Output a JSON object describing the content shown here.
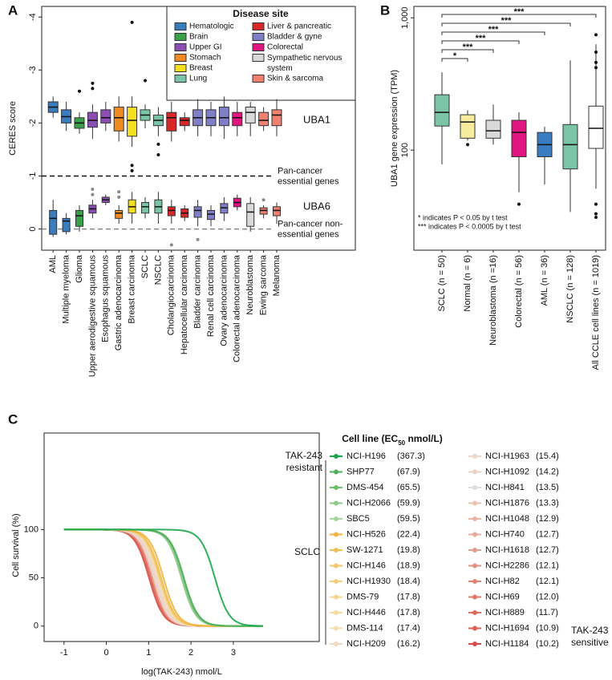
{
  "chart_data": [
    {
      "type": "box",
      "panel": "A",
      "ylabel": "CERES score",
      "categories": [
        "AML",
        "Multiple myeloma",
        "Glioma",
        "Upper aerodigestive squamous",
        "Esophagus squamous",
        "Gastric adenocarcinoma",
        "Breast carcinoma",
        "SCLC",
        "NSCLC",
        "Cholangiocarcinoma",
        "Hepatocellular carcinoma",
        "Bladder carcinoma",
        "Renal cell carcinoma",
        "Ovary adenocarcinoma",
        "Colorectal adenocarcinoma",
        "Neuroblastoma",
        "Ewing sarcoma",
        "Melanoma"
      ],
      "colors": [
        "#3a7cc0",
        "#3a7cc0",
        "#3aa04a",
        "#8a4fb0",
        "#8a4fb0",
        "#f08a22",
        "#f5e020",
        "#7cc4a8",
        "#7cc4a8",
        "#d62828",
        "#d62828",
        "#7f7fc8",
        "#7f7fc8",
        "#7f7fc8",
        "#e0157f",
        "#d9d9d9",
        "#f08070",
        "#f08070"
      ],
      "ylim": [
        0.4,
        -4.2
      ],
      "yticks": [
        0,
        -1,
        -2,
        -3,
        -4
      ],
      "series": [
        {
          "name": "UBA1",
          "outlier_color": "#111",
          "min": [
            -2.5,
            -2.4,
            -2.2,
            -2.35,
            -2.4,
            -2.5,
            -2.5,
            -2.35,
            -2.3,
            -2.4,
            -2.2,
            -2.45,
            -2.4,
            -2.5,
            -2.4,
            -2.4,
            -2.3,
            -2.45
          ],
          "q1": [
            -2.4,
            -2.25,
            -2.1,
            -2.2,
            -2.25,
            -2.3,
            -2.3,
            -2.25,
            -2.15,
            -2.2,
            -2.1,
            -2.25,
            -2.25,
            -2.3,
            -2.2,
            -2.3,
            -2.2,
            -2.25
          ],
          "median": [
            -2.3,
            -2.12,
            -2.0,
            -2.05,
            -2.1,
            -2.1,
            -2.05,
            -2.15,
            -2.05,
            -2.1,
            -2.05,
            -2.1,
            -2.1,
            -2.1,
            -2.1,
            -2.2,
            -2.05,
            -2.15
          ],
          "q3": [
            -2.2,
            -2.0,
            -1.9,
            -1.92,
            -2.0,
            -1.85,
            -1.75,
            -2.05,
            -1.95,
            -1.85,
            -1.95,
            -1.95,
            -1.95,
            -1.95,
            -1.95,
            -2.0,
            -1.95,
            -1.95
          ],
          "max": [
            -2.1,
            -1.85,
            -1.8,
            -1.7,
            -1.85,
            -1.65,
            -1.55,
            -1.9,
            -1.75,
            -1.65,
            -1.85,
            -1.75,
            -1.75,
            -1.7,
            -1.75,
            -1.75,
            -1.85,
            -1.75
          ],
          "outliers": [
            [],
            [],
            [
              -2.6
            ],
            [
              -2.65,
              -2.75
            ],
            [],
            [],
            [
              -3.9,
              -1.2,
              -1.1
            ],
            [
              -2.8
            ],
            [
              -1.6,
              -1.4
            ],
            [],
            [],
            [],
            [],
            [],
            [],
            [],
            [],
            []
          ]
        },
        {
          "name": "UBA6",
          "outlier_color": "#888",
          "min": [
            -0.55,
            -0.3,
            -0.45,
            -0.55,
            -0.65,
            -0.45,
            -0.7,
            -0.6,
            -0.7,
            -0.55,
            -0.45,
            -0.55,
            -0.45,
            -0.6,
            -0.65,
            -0.6,
            -0.45,
            -0.5
          ],
          "q1": [
            -0.35,
            -0.2,
            -0.35,
            -0.45,
            -0.6,
            -0.35,
            -0.55,
            -0.5,
            -0.55,
            -0.42,
            -0.38,
            -0.42,
            -0.35,
            -0.48,
            -0.58,
            -0.48,
            -0.4,
            -0.42
          ],
          "median": [
            -0.2,
            -0.15,
            -0.25,
            -0.38,
            -0.55,
            -0.3,
            -0.42,
            -0.42,
            -0.42,
            -0.35,
            -0.3,
            -0.35,
            -0.28,
            -0.4,
            -0.5,
            -0.32,
            -0.35,
            -0.35
          ],
          "q3": [
            0.1,
            0.05,
            -0.05,
            -0.3,
            -0.5,
            -0.2,
            -0.3,
            -0.3,
            -0.3,
            -0.25,
            -0.22,
            -0.22,
            -0.18,
            -0.3,
            -0.42,
            -0.05,
            -0.28,
            -0.25
          ],
          "max": [
            0.15,
            0.1,
            0.05,
            -0.2,
            -0.45,
            -0.1,
            -0.1,
            -0.2,
            -0.1,
            -0.1,
            -0.15,
            -0.05,
            -0.05,
            -0.15,
            -0.35,
            0.05,
            -0.2,
            -0.1
          ],
          "outliers": [
            [],
            [],
            [],
            [
              -0.65,
              -0.75
            ],
            [],
            [
              -0.6,
              -0.7
            ],
            [],
            [],
            [],
            [
              0.3
            ],
            [],
            [
              0.2
            ],
            [],
            [],
            [],
            [],
            [
              -0.55
            ],
            []
          ]
        }
      ],
      "ref_lines": [
        {
          "value": -1,
          "color": "#111",
          "label": [
            "Pan-cancer",
            "essential genes"
          ]
        },
        {
          "value": 0,
          "color": "#888",
          "label": [
            "Pan-cancer non-",
            "essential genes"
          ]
        }
      ],
      "legend": {
        "title": "Disease site",
        "items": [
          {
            "name": "Hematologic",
            "color": "#3a7cc0"
          },
          {
            "name": "Brain",
            "color": "#3aa04a"
          },
          {
            "name": "Upper GI",
            "color": "#8a4fb0"
          },
          {
            "name": "Stomach",
            "color": "#f08a22"
          },
          {
            "name": "Breast",
            "color": "#f5e020"
          },
          {
            "name": "Lung",
            "color": "#7cc4a8"
          },
          {
            "name": "Liver & pancreatic",
            "color": "#d62828"
          },
          {
            "name": "Bladder & gyne",
            "color": "#7f7fc8"
          },
          {
            "name": "Colorectal",
            "color": "#e0157f"
          },
          {
            "name": "Sympathetic nervous system",
            "color": "#d9d9d9"
          },
          {
            "name": "Skin & sarcoma",
            "color": "#f08070"
          }
        ]
      }
    },
    {
      "type": "box",
      "panel": "B",
      "ylabel": "UBA1 gene expression (TPM)",
      "log_y": true,
      "categories": [
        "SCLC (n = 50)",
        "Normal (n = 6)",
        "Neuroblastoma (n =16)",
        "Colorectal (n = 56)",
        "AML (n = 36)",
        "NSCLC (n = 128)",
        "All CCLE cell lines (n = 1019)"
      ],
      "colors": [
        "#7cc4a8",
        "#f7ec9e",
        "#d9d9d9",
        "#e0157f",
        "#3a7cc0",
        "#7cc4a8",
        "#ffffff"
      ],
      "ylim": [
        17.5,
        1220
      ],
      "yticks": [
        100,
        {
          "value": 1000,
          "label": "1,000"
        }
      ],
      "series": [
        {
          "outlier_color": "#111",
          "min": [
            78,
            118,
            110,
            48,
            55,
            34,
            51
          ],
          "q1": [
            152,
            123,
            123,
            89,
            89,
            72,
            103
          ],
          "median": [
            193,
            163,
            140,
            136,
            110,
            110,
            146
          ],
          "q3": [
            262,
            185,
            168,
            168,
            136,
            156,
            215
          ],
          "max": [
            387,
            200,
            221,
            193,
            150,
            477,
            631
          ],
          "outliers": [
            [],
            [
              110
            ],
            [],
            [
              39
            ],
            [],
            [],
            [
              745,
              550,
              460,
              420,
              39,
              33,
              31
            ]
          ]
        }
      ],
      "significance": [
        "*",
        "***",
        "***",
        "***",
        "***",
        "***"
      ],
      "notes": [
        "* indicates P < 0.05 by t test",
        "*** indicates P < 0.0005 by t test"
      ]
    },
    {
      "type": "line",
      "panel": "C",
      "xlabel": "log(TAK-243) nmol/L",
      "ylabel": "Cell survival (%)",
      "xlim": [
        -1.47,
        5.03
      ],
      "xticks": [
        -1,
        0,
        1,
        2,
        3
      ],
      "ylim": [
        -16,
        200
      ],
      "yticks": [
        0,
        50,
        100
      ],
      "legend_title": [
        "Cell line (EC",
        "50",
        " nmol/L)"
      ],
      "categories": [
        "NCI-H196",
        "SHP77",
        "DMS-454",
        "NCI-H2066",
        "SBC5",
        "NCI-H526",
        "SW-1271",
        "NCI-H146",
        "NCI-H1930",
        "DMS-79",
        "NCI-H446",
        "DMS-114",
        "NCI-H209",
        "NCI-H1963",
        "NCI-H1092",
        "NCI-H841",
        "NCI-H1876",
        "NCI-H1048",
        "NCI-H740",
        "NCI-H1618",
        "NCI-H2286",
        "NCI-H82",
        "NCI-H69",
        "NCI-H889",
        "NCI-H1694",
        "NCI-H1184"
      ],
      "values": [
        367.3,
        67.9,
        65.5,
        59.9,
        59.5,
        22.4,
        19.8,
        18.9,
        18.4,
        17.8,
        17.8,
        17.4,
        16.2,
        15.4,
        14.2,
        13.5,
        13.3,
        12.9,
        12.7,
        12.7,
        12.1,
        12.1,
        12.0,
        11.7,
        10.9,
        10.2
      ],
      "value_labels": [
        "(367.3)",
        "(67.9)",
        "(65.5)",
        "(59.9)",
        "(59.5)",
        "(22.4)",
        "(19.8)",
        "(18.9)",
        "(18.4)",
        "(17.8)",
        "(17.8)",
        "(17.4)",
        "(16.2)",
        "(15.4)",
        "(14.2)",
        "(13.5)",
        "(13.3)",
        "(12.9)",
        "(12.7)",
        "(12.7)",
        "(12.1)",
        "(12.1)",
        "(12.0)",
        "(11.7)",
        "(10.9)",
        "(10.2)"
      ],
      "colors": [
        "#1aa64a",
        "#4cb05a",
        "#6cbd6c",
        "#8cc98a",
        "#a8d5a0",
        "#f0b43c",
        "#f2bf55",
        "#f3c767",
        "#f4cf7a",
        "#f5d690",
        "#f5dca0",
        "#f4dfb0",
        "#f0d9c0",
        "#eed6c8",
        "#ecd2c6",
        "#e6dcd6",
        "#eac0b0",
        "#eab4a4",
        "#e8a898",
        "#e69c8c",
        "#e49080",
        "#e28474",
        "#e07868",
        "#de6c5c",
        "#dc6050",
        "#d84a44"
      ],
      "resistant_label": [
        "TAK-243",
        "resistant"
      ],
      "resistant_color": "#1aa64a",
      "group_label": "SCLC",
      "sensitive_label": [
        "TAK-243",
        "sensitive"
      ],
      "sensitive_color": "#d8383a"
    }
  ]
}
